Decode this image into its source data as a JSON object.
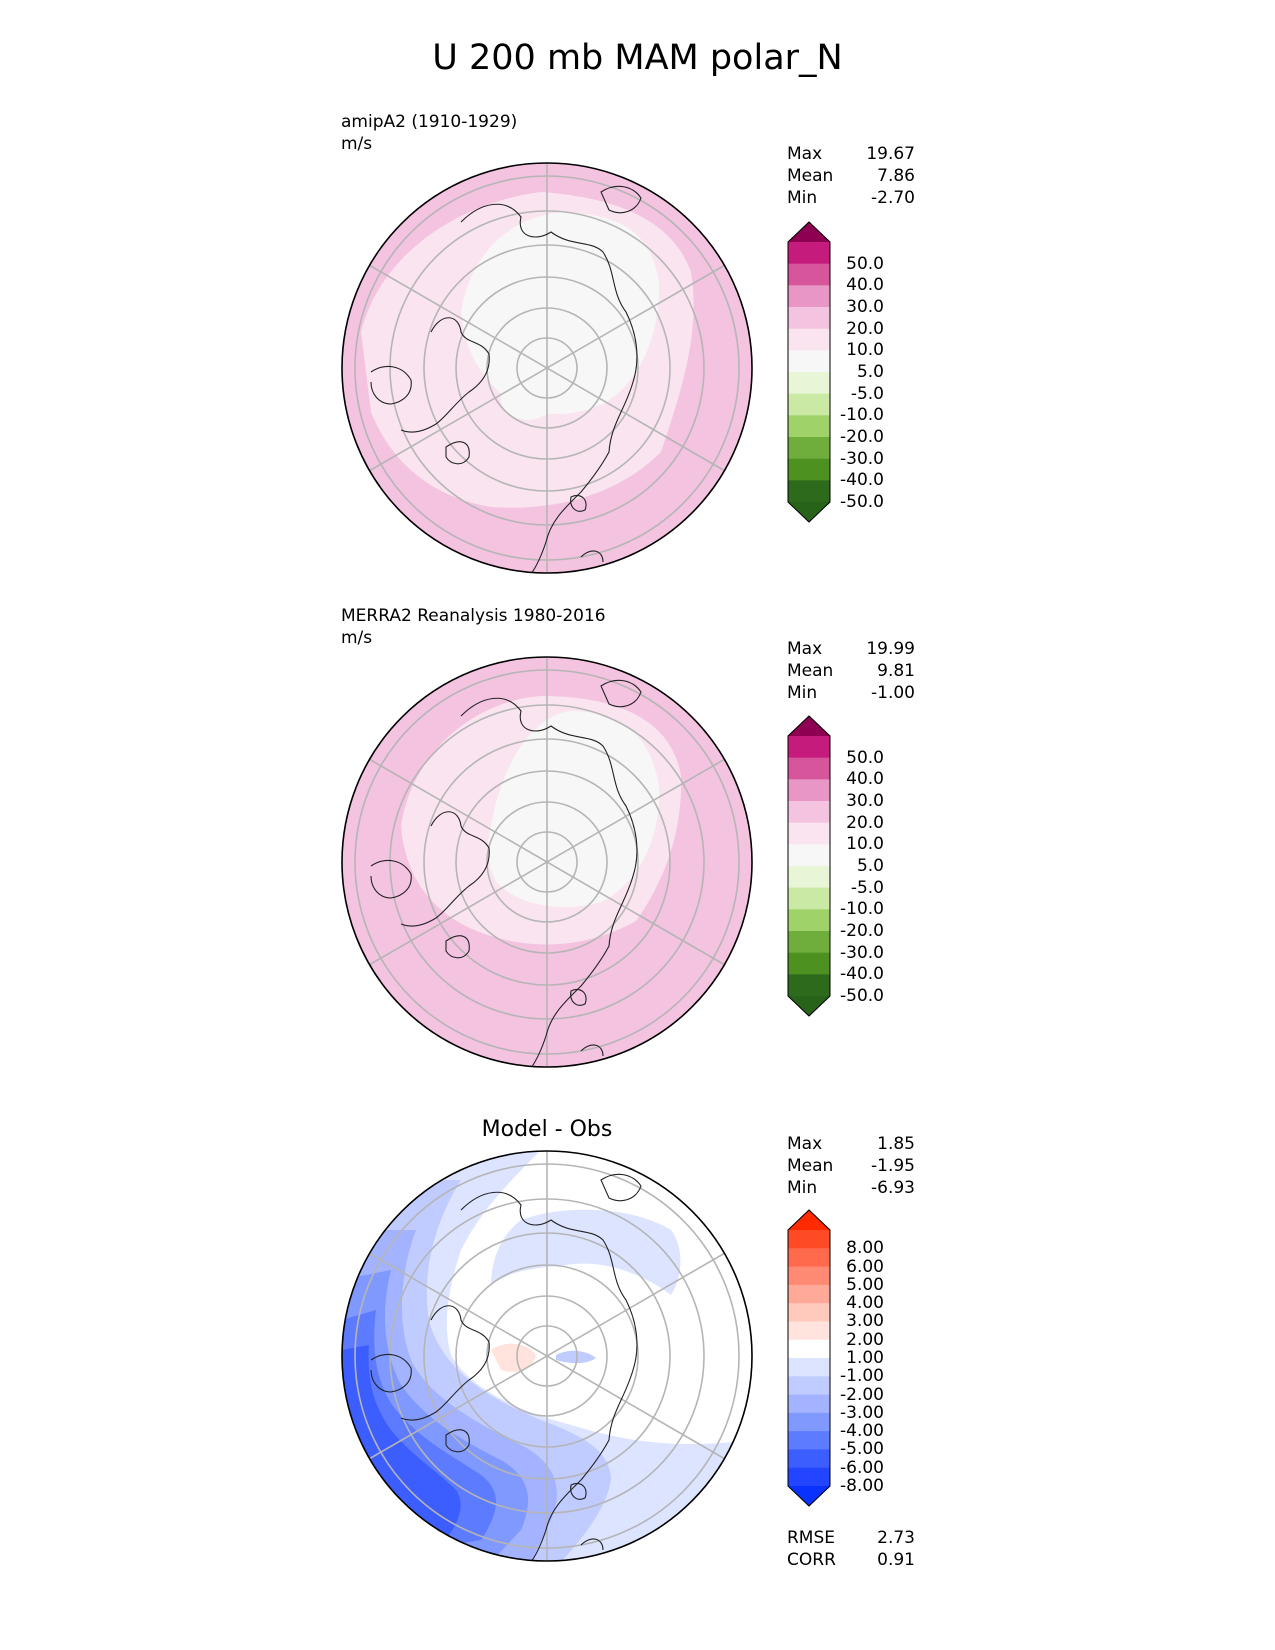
{
  "title": "U 200 mb MAM polar_N",
  "panels": [
    {
      "id": "model",
      "label": "amipA2 (1910-1929)",
      "units": "m/s",
      "stats": [
        {
          "key": "Max",
          "value": "19.67"
        },
        {
          "key": "Mean",
          "value": "7.86"
        },
        {
          "key": "Min",
          "value": "-2.70"
        }
      ],
      "colorbar": {
        "ticks": [
          "50.0",
          "40.0",
          "30.0",
          "20.0",
          "10.0",
          "5.0",
          "-5.0",
          "-10.0",
          "-20.0",
          "-30.0",
          "-40.0",
          "-50.0"
        ],
        "top_color": "#8e0152",
        "bottom_color": "#276419",
        "colors": [
          "#c51b7d",
          "#d7569b",
          "#e896c6",
          "#f3c3e0",
          "#fae4f0",
          "#f7f7f7",
          "#e8f5d6",
          "#c9e9a4",
          "#9fd36a",
          "#6fae3c",
          "#4d9221",
          "#2d6a1c"
        ]
      }
    },
    {
      "id": "obs",
      "label": "MERRA2 Reanalysis 1980-2016",
      "units": "m/s",
      "stats": [
        {
          "key": "Max",
          "value": "19.99"
        },
        {
          "key": "Mean",
          "value": "9.81"
        },
        {
          "key": "Min",
          "value": "-1.00"
        }
      ],
      "colorbar": {
        "ticks": [
          "50.0",
          "40.0",
          "30.0",
          "20.0",
          "10.0",
          "5.0",
          "-5.0",
          "-10.0",
          "-20.0",
          "-30.0",
          "-40.0",
          "-50.0"
        ],
        "top_color": "#8e0152",
        "bottom_color": "#276419",
        "colors": [
          "#c51b7d",
          "#d7569b",
          "#e896c6",
          "#f3c3e0",
          "#fae4f0",
          "#f7f7f7",
          "#e8f5d6",
          "#c9e9a4",
          "#9fd36a",
          "#6fae3c",
          "#4d9221",
          "#2d6a1c"
        ]
      }
    },
    {
      "id": "diff",
      "title": "Model - Obs",
      "stats": [
        {
          "key": "Max",
          "value": "1.85"
        },
        {
          "key": "Mean",
          "value": "-1.95"
        },
        {
          "key": "Min",
          "value": "-6.93"
        }
      ],
      "metrics": [
        {
          "key": "RMSE",
          "value": "2.73"
        },
        {
          "key": "CORR",
          "value": "0.91"
        }
      ],
      "colorbar": {
        "ticks": [
          "8.00",
          "6.00",
          "5.00",
          "4.00",
          "3.00",
          "2.00",
          "1.00",
          "-1.00",
          "-2.00",
          "-3.00",
          "-4.00",
          "-5.00",
          "-6.00",
          "-8.00"
        ],
        "top_color": "#ff2a00",
        "bottom_color": "#0a32ff",
        "colors": [
          "#ff4a26",
          "#ff6a4c",
          "#ff8a73",
          "#ffaa99",
          "#ffc9bc",
          "#ffe3dc",
          "#ffffff",
          "#dde4ff",
          "#c0ccff",
          "#a3b3ff",
          "#8099ff",
          "#5c7bff",
          "#3d5eff",
          "#2445ff"
        ]
      }
    }
  ],
  "chart_data": [
    {
      "type": "heatmap",
      "projection": "north-polar-stereographic",
      "title": "amipA2 (1910-1929)",
      "units": "m/s",
      "levels": [
        -50,
        -40,
        -30,
        -20,
        -10,
        -5,
        5,
        10,
        20,
        30,
        40,
        50
      ],
      "max": 19.67,
      "mean": 7.86,
      "min": -2.7
    },
    {
      "type": "heatmap",
      "projection": "north-polar-stereographic",
      "title": "MERRA2 Reanalysis 1980-2016",
      "units": "m/s",
      "levels": [
        -50,
        -40,
        -30,
        -20,
        -10,
        -5,
        5,
        10,
        20,
        30,
        40,
        50
      ],
      "max": 19.99,
      "mean": 9.81,
      "min": -1.0
    },
    {
      "type": "heatmap",
      "projection": "north-polar-stereographic",
      "title": "Model - Obs",
      "levels": [
        -8,
        -6,
        -5,
        -4,
        -3,
        -2,
        -1,
        1,
        2,
        3,
        4,
        5,
        6,
        8
      ],
      "max": 1.85,
      "mean": -1.95,
      "min": -6.93,
      "rmse": 2.73,
      "corr": 0.91
    }
  ]
}
